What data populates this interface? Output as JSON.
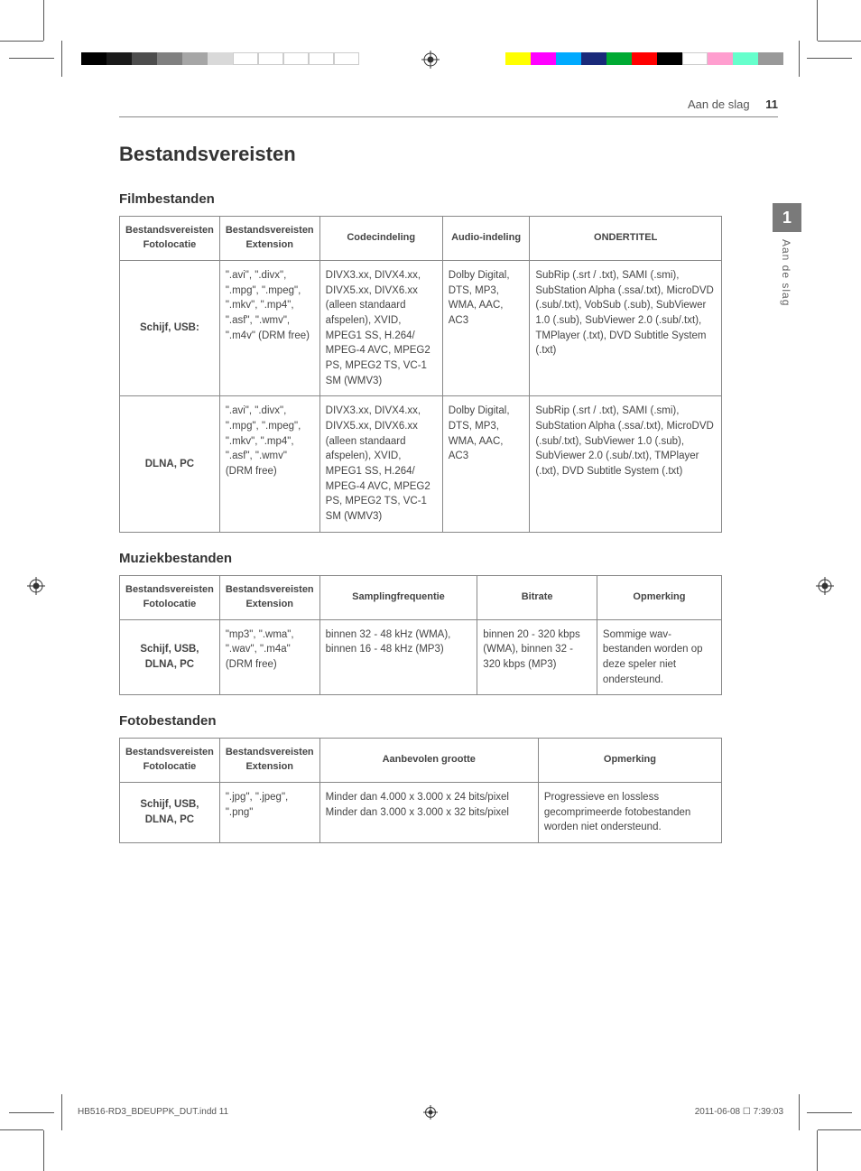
{
  "page": {
    "header_title": "Aan de slag",
    "header_page": "11",
    "side_tab_number": "1",
    "side_tab_text": "Aan de slag",
    "section_title": "Bestandsvereisten",
    "footer_left": "HB516-RD3_BDEUPPK_DUT.indd   11",
    "footer_right": "2011-06-08   ☐ 7:39:03"
  },
  "colorbars": {
    "left": [
      "#000000",
      "#1a1a1a",
      "#4d4d4d",
      "#808080",
      "#a6a6a6",
      "#d9d9d9",
      "#ffffff",
      "#ffffff",
      "#ffffff",
      "#ffffff",
      "#ffffff"
    ],
    "right": [
      "#ffff00",
      "#ff00ff",
      "#00aaff",
      "#1a2a7a",
      "#00aa33",
      "#ff0000",
      "#000000",
      "#ffffff",
      "#ff9ecf",
      "#66ffcc",
      "#999999"
    ]
  },
  "film": {
    "title": "Filmbestanden",
    "headers": [
      "Bestandsvereisten Fotolocatie",
      "Bestandsvereisten Extension",
      "Codecindeling",
      "Audio-indeling",
      "ONDERTITEL"
    ],
    "rows": [
      {
        "loc": "Schijf, USB:",
        "ext": "\".avi\", \".divx\", \".mpg\", \".mpeg\", \".mkv\", \".mp4\", \".asf\", \".wmv\", \".m4v\" (DRM free)",
        "codec": "DIVX3.xx, DIVX4.xx, DIVX5.xx, DIVX6.xx (alleen standaard afspelen), XVID, MPEG1 SS, H.264/ MPEG-4 AVC, MPEG2 PS, MPEG2 TS, VC-1 SM (WMV3)",
        "audio": "Dolby Digital, DTS, MP3, WMA, AAC, AC3",
        "sub": "SubRip (.srt / .txt), SAMI (.smi), SubStation Alpha (.ssa/.txt), MicroDVD (.sub/.txt), VobSub (.sub), SubViewer 1.0 (.sub), SubViewer 2.0 (.sub/.txt), TMPlayer (.txt), DVD Subtitle System (.txt)"
      },
      {
        "loc": "DLNA, PC",
        "ext": "\".avi\", \".divx\", \".mpg\", \".mpeg\", \".mkv\", \".mp4\", \".asf\", \".wmv\" (DRM free)",
        "codec": "DIVX3.xx, DIVX4.xx, DIVX5.xx, DIVX6.xx (alleen standaard afspelen), XVID, MPEG1 SS, H.264/ MPEG-4 AVC, MPEG2 PS, MPEG2 TS, VC-1 SM (WMV3)",
        "audio": "Dolby Digital, DTS, MP3, WMA, AAC, AC3",
        "sub": "SubRip (.srt / .txt), SAMI (.smi), SubStation Alpha (.ssa/.txt), MicroDVD (.sub/.txt), SubViewer 1.0 (.sub), SubViewer 2.0 (.sub/.txt), TMPlayer (.txt), DVD Subtitle System (.txt)"
      }
    ]
  },
  "music": {
    "title": "Muziekbestanden",
    "headers": [
      "Bestandsvereisten Fotolocatie",
      "Bestandsvereisten Extension",
      "Samplingfrequentie",
      "Bitrate",
      "Opmerking"
    ],
    "rows": [
      {
        "loc": "Schijf, USB, DLNA, PC",
        "ext": "\"mp3\", \".wma\", \".wav\", \".m4a\" (DRM free)",
        "samp": "binnen 32 - 48 kHz (WMA), binnen 16 - 48 kHz (MP3)",
        "bit": "binnen 20 - 320 kbps (WMA), binnen 32 - 320 kbps (MP3)",
        "note": "Sommige wav-bestanden worden op deze speler niet ondersteund."
      }
    ]
  },
  "photo": {
    "title": "Fotobestanden",
    "headers": [
      "Bestandsvereisten Fotolocatie",
      "Bestandsvereisten Extension",
      "Aanbevolen grootte",
      "Opmerking"
    ],
    "rows": [
      {
        "loc": "Schijf, USB, DLNA, PC",
        "ext": "\".jpg\", \".jpeg\", \".png\"",
        "size": "Minder dan 4.000 x 3.000 x 24 bits/pixel Minder dan 3.000 x 3.000 x 32 bits/pixel",
        "note": "Progressieve en lossless gecomprimeerde fotobestanden worden niet ondersteund."
      }
    ]
  },
  "reg_mark_color": "#333333"
}
